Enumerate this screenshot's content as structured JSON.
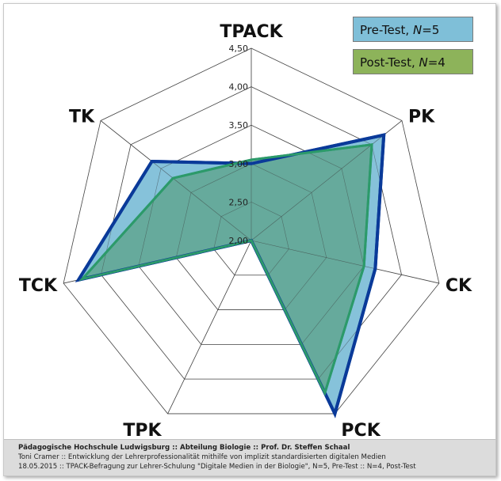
{
  "chart_data": {
    "type": "radar",
    "axes": [
      "TPACK",
      "PK",
      "CK",
      "PCK",
      "TPK",
      "TCK",
      "TK"
    ],
    "rlim": [
      2.0,
      4.5
    ],
    "ticks": [
      "2,00",
      "2,50",
      "3,00",
      "3,50",
      "4,00",
      "4,50"
    ],
    "tick_values": [
      2.0,
      2.5,
      3.0,
      3.5,
      4.0,
      4.5
    ],
    "grid": true,
    "legend": "top-right",
    "series": [
      {
        "name": "Pre-Test, N=5",
        "values": [
          3.0,
          4.2,
          3.65,
          4.5,
          2.0,
          4.3,
          3.65
        ],
        "fill": "#7fbfd8",
        "stroke": "#0a3a99"
      },
      {
        "name": "Post-Test, N=4",
        "values": [
          3.05,
          4.0,
          3.5,
          4.2,
          2.0,
          4.25,
          3.3
        ],
        "fill": "#5ea38a",
        "stroke": "#2c9a6a"
      }
    ],
    "legend_entries": [
      {
        "prefix": "Pre-Test, ",
        "italic": "N",
        "suffix": "=5",
        "color": "#7fbfd8"
      },
      {
        "prefix": "Post-Test, ",
        "italic": "N",
        "suffix": "=4",
        "color": "#8db35a"
      }
    ]
  },
  "footer": {
    "line1": "Pädagogische Hochschule Ludwigsburg :: Abteilung Biologie :: Prof. Dr. Steffen Schaal",
    "line2": "Toni Cramer :: Entwicklung der Lehrerprofessionalität mithilfe von implizit standardisierten digitalen Medien",
    "line3": "18.05.2015 :: TPACK-Befragung zur Lehrer-Schulung  \"Digitale Medien in der Biologie\", N=5, Pre-Test  ::  N=4, Post-Test"
  }
}
